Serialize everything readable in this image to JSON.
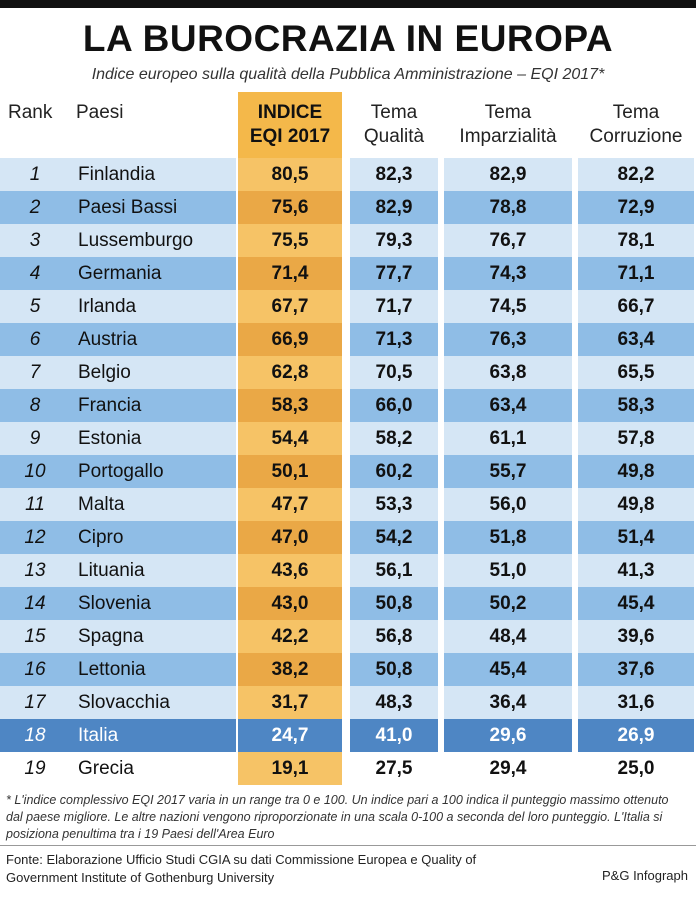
{
  "title": "LA BUROCRAZIA IN EUROPA",
  "subtitle": "Indice europeo sulla qualità della Pubblica Amministrazione – EQI 2017*",
  "headers": {
    "rank": "Rank",
    "paesi": "Paesi",
    "eqi_1": "INDICE",
    "eqi_2": "EQI 2017",
    "q_1": "Tema",
    "q_2": "Qualità",
    "imp_1": "Tema",
    "imp_2": "Imparzialità",
    "corr_1": "Tema",
    "corr_2": "Corruzione"
  },
  "chart_data": {
    "type": "table",
    "columns": [
      "Rank",
      "Paesi",
      "INDICE EQI 2017",
      "Tema Qualità",
      "Tema Imparzialità",
      "Tema Corruzione"
    ],
    "rows": [
      {
        "rank": "1",
        "country": "Finlandia",
        "eqi": "80,5",
        "qualita": "82,3",
        "imparzialita": "82,9",
        "corruzione": "82,2"
      },
      {
        "rank": "2",
        "country": "Paesi Bassi",
        "eqi": "75,6",
        "qualita": "82,9",
        "imparzialita": "78,8",
        "corruzione": "72,9"
      },
      {
        "rank": "3",
        "country": "Lussemburgo",
        "eqi": "75,5",
        "qualita": "79,3",
        "imparzialita": "76,7",
        "corruzione": "78,1"
      },
      {
        "rank": "4",
        "country": "Germania",
        "eqi": "71,4",
        "qualita": "77,7",
        "imparzialita": "74,3",
        "corruzione": "71,1"
      },
      {
        "rank": "5",
        "country": "Irlanda",
        "eqi": "67,7",
        "qualita": "71,7",
        "imparzialita": "74,5",
        "corruzione": "66,7"
      },
      {
        "rank": "6",
        "country": "Austria",
        "eqi": "66,9",
        "qualita": "71,3",
        "imparzialita": "76,3",
        "corruzione": "63,4"
      },
      {
        "rank": "7",
        "country": "Belgio",
        "eqi": "62,8",
        "qualita": "70,5",
        "imparzialita": "63,8",
        "corruzione": "65,5"
      },
      {
        "rank": "8",
        "country": "Francia",
        "eqi": "58,3",
        "qualita": "66,0",
        "imparzialita": "63,4",
        "corruzione": "58,3"
      },
      {
        "rank": "9",
        "country": "Estonia",
        "eqi": "54,4",
        "qualita": "58,2",
        "imparzialita": "61,1",
        "corruzione": "57,8"
      },
      {
        "rank": "10",
        "country": "Portogallo",
        "eqi": "50,1",
        "qualita": "60,2",
        "imparzialita": "55,7",
        "corruzione": "49,8"
      },
      {
        "rank": "11",
        "country": "Malta",
        "eqi": "47,7",
        "qualita": "53,3",
        "imparzialita": "56,0",
        "corruzione": "49,8"
      },
      {
        "rank": "12",
        "country": "Cipro",
        "eqi": "47,0",
        "qualita": "54,2",
        "imparzialita": "51,8",
        "corruzione": "51,4"
      },
      {
        "rank": "13",
        "country": "Lituania",
        "eqi": "43,6",
        "qualita": "56,1",
        "imparzialita": "51,0",
        "corruzione": "41,3"
      },
      {
        "rank": "14",
        "country": "Slovenia",
        "eqi": "43,0",
        "qualita": "50,8",
        "imparzialita": "50,2",
        "corruzione": "45,4"
      },
      {
        "rank": "15",
        "country": "Spagna",
        "eqi": "42,2",
        "qualita": "56,8",
        "imparzialita": "48,4",
        "corruzione": "39,6"
      },
      {
        "rank": "16",
        "country": "Lettonia",
        "eqi": "38,2",
        "qualita": "50,8",
        "imparzialita": "45,4",
        "corruzione": "37,6"
      },
      {
        "rank": "17",
        "country": "Slovacchia",
        "eqi": "31,7",
        "qualita": "48,3",
        "imparzialita": "36,4",
        "corruzione": "31,6"
      },
      {
        "rank": "18",
        "country": "Italia",
        "eqi": "24,7",
        "qualita": "41,0",
        "imparzialita": "29,6",
        "corruzione": "26,9",
        "highlight": true
      },
      {
        "rank": "19",
        "country": "Grecia",
        "eqi": "19,1",
        "qualita": "27,5",
        "imparzialita": "29,4",
        "corruzione": "25,0"
      }
    ]
  },
  "colors": {
    "eqi_column": "#f6c366",
    "row_light": "#d5e6f5",
    "row_dark": "#8fbde6",
    "highlight": "#4e86c4"
  },
  "footnote": "* L'indice complessivo EQI 2017 varia in un range tra 0 e 100. Un indice pari a 100 indica il punteggio massimo ottenuto dal paese migliore. Le altre nazioni vengono riproporzionate in una scala 0-100 a seconda del loro punteggio. L'Italia si posiziona penultima tra i 19 Paesi dell'Area Euro",
  "source": "Fonte: Elaborazione Ufficio Studi CGIA su dati Commissione Europea e Quality of Government Institute of Gothenburg University",
  "credit": "P&G Infograph"
}
